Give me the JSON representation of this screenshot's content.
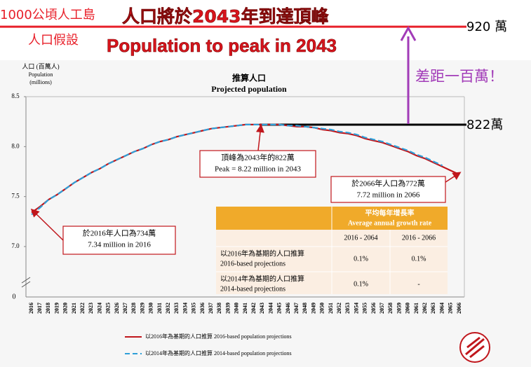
{
  "header": {
    "island": "1000公頃人工島",
    "headline": "人口將於2043年到達頂峰",
    "assumption": "人口假設",
    "headline_en": "Population to peak in 2043",
    "gap": "差距一百萬！"
  },
  "chart_data": {
    "type": "line",
    "title": "推算人口",
    "subtitle": "Projected population",
    "y_label": [
      "人口 (百萬人)",
      "Population",
      "(millions)"
    ],
    "categories": [
      "2016",
      "2017",
      "2018",
      "2019",
      "2020",
      "2021",
      "2022",
      "2023",
      "2024",
      "2025",
      "2026",
      "2027",
      "2028",
      "2029",
      "2030",
      "2031",
      "2032",
      "2033",
      "2034",
      "2035",
      "2036",
      "2037",
      "2038",
      "2039",
      "2040",
      "2041",
      "2042",
      "2043",
      "2044",
      "2045",
      "2046",
      "2047",
      "2048",
      "2049",
      "2050",
      "2051",
      "2052",
      "2053",
      "2054",
      "2055",
      "2056",
      "2057",
      "2058",
      "2059",
      "2060",
      "2061",
      "2062",
      "2063",
      "2064",
      "2065",
      "2066"
    ],
    "series": [
      {
        "name": "以2016年為基期的人口推算 2016-based population projections",
        "color": "#c0161c",
        "dash": false,
        "values": [
          7.34,
          7.4,
          7.47,
          7.52,
          7.58,
          7.64,
          7.69,
          7.74,
          7.78,
          7.83,
          7.87,
          7.91,
          7.95,
          7.98,
          8.02,
          8.05,
          8.07,
          8.1,
          8.12,
          8.14,
          8.16,
          8.18,
          8.19,
          8.2,
          8.21,
          8.22,
          8.22,
          8.22,
          8.22,
          8.22,
          8.21,
          8.2,
          8.2,
          8.19,
          8.17,
          8.16,
          8.14,
          8.13,
          8.11,
          8.08,
          8.06,
          8.04,
          8.01,
          7.98,
          7.95,
          7.91,
          7.88,
          7.84,
          7.8,
          7.76,
          7.72
        ]
      },
      {
        "name": "以2014年為基期的人口推算 2014-based population projections",
        "color": "#2e9fd8",
        "dash": true,
        "values": [
          7.32,
          7.39,
          7.47,
          7.52,
          7.58,
          7.64,
          7.69,
          7.74,
          7.78,
          7.83,
          7.87,
          7.91,
          7.95,
          7.98,
          8.02,
          8.05,
          8.07,
          8.1,
          8.12,
          8.14,
          8.16,
          8.18,
          8.19,
          8.2,
          8.21,
          8.22,
          8.22,
          8.22,
          8.22,
          8.22,
          8.21,
          8.21,
          8.2,
          8.19,
          8.18,
          8.17,
          8.15,
          8.14,
          8.12,
          8.09,
          8.07,
          8.05,
          8.02,
          7.99,
          7.96,
          7.92,
          7.89,
          7.85,
          7.81,
          null,
          null
        ]
      }
    ],
    "ylim": [
      7,
      8.5
    ],
    "yticks": [
      {
        "value": 7,
        "label": "7.0"
      },
      7.5,
      {
        "value": 8,
        "label": "8.0"
      },
      8.5
    ],
    "y_break_label": "0",
    "legend": "bottom",
    "reference_lines": [
      {
        "value": 9.2,
        "label": "920 萬",
        "color": "#e8202a"
      },
      {
        "value": 8.22,
        "label": "822萬",
        "color": "#000000"
      }
    ],
    "annotations": [
      {
        "lines": [
          "於2016年人口為734萬",
          "7.34 million in 2016"
        ]
      },
      {
        "lines": [
          "頂峰為2043年的822萬",
          "Peak = 8.22 million in 2043"
        ]
      },
      {
        "lines": [
          "於2066年人口為772萬",
          "7.72 million in 2066"
        ]
      }
    ],
    "table": {
      "title": [
        "平均每年增長率",
        "Average annual growth rate"
      ],
      "columns": [
        "2016 - 2064",
        "2016 - 2066"
      ],
      "rows": [
        {
          "label": [
            "以2016年為基期的人口推算",
            "2016-based projections"
          ],
          "cells": [
            "0.1%",
            "0.1%"
          ]
        },
        {
          "label": [
            "以2014年為基期的人口推算",
            "2014-based projections"
          ],
          "cells": [
            "0.1%",
            "-"
          ]
        }
      ]
    }
  }
}
